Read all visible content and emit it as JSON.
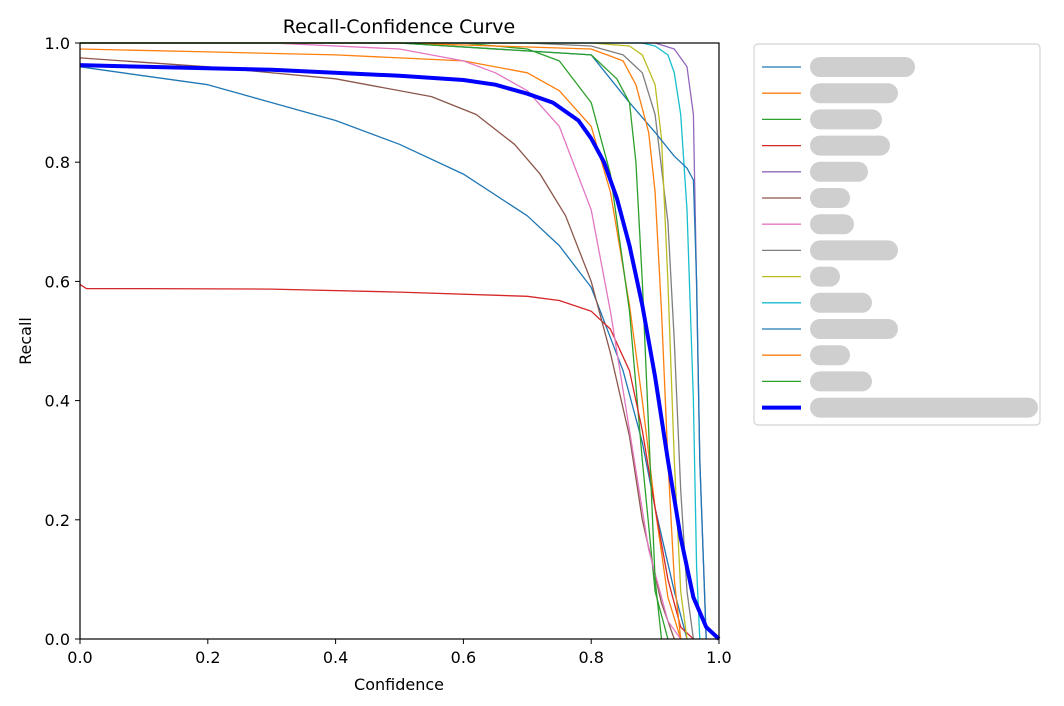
{
  "chart_data": {
    "type": "line",
    "title": "Recall-Confidence Curve",
    "xlabel": "Confidence",
    "ylabel": "Recall",
    "xlim": [
      0.0,
      1.0
    ],
    "ylim": [
      0.0,
      1.0
    ],
    "xticks": [
      "0.0",
      "0.2",
      "0.4",
      "0.6",
      "0.8",
      "1.0"
    ],
    "yticks": [
      "0.0",
      "0.2",
      "0.4",
      "0.6",
      "0.8",
      "1.0"
    ],
    "grid": false,
    "legend_position": "outside-right",
    "series": [
      {
        "color": "#1f77b4",
        "x": [
          0.0,
          0.1,
          0.2,
          0.3,
          0.4,
          0.5,
          0.6,
          0.7,
          0.75,
          0.8,
          0.85,
          0.88,
          0.9,
          0.93,
          0.95
        ],
        "y": [
          0.96,
          0.945,
          0.93,
          0.9,
          0.87,
          0.83,
          0.78,
          0.71,
          0.66,
          0.59,
          0.45,
          0.33,
          0.22,
          0.08,
          0.0
        ]
      },
      {
        "color": "#ff7f0e",
        "x": [
          0.0,
          0.2,
          0.4,
          0.6,
          0.7,
          0.75,
          0.8,
          0.83,
          0.86,
          0.88,
          0.9,
          0.92,
          0.94
        ],
        "y": [
          0.99,
          0.985,
          0.98,
          0.97,
          0.95,
          0.92,
          0.86,
          0.75,
          0.56,
          0.4,
          0.22,
          0.07,
          0.0
        ]
      },
      {
        "color": "#2ca02c",
        "x": [
          0.0,
          0.3,
          0.6,
          0.7,
          0.75,
          0.8,
          0.83,
          0.86,
          0.88,
          0.9,
          0.92
        ],
        "y": [
          1.0,
          1.0,
          1.0,
          0.99,
          0.97,
          0.9,
          0.78,
          0.55,
          0.3,
          0.08,
          0.0
        ]
      },
      {
        "color": "#d62728",
        "x": [
          0.0,
          0.01,
          0.1,
          0.3,
          0.5,
          0.7,
          0.75,
          0.8,
          0.83,
          0.86,
          0.88,
          0.9,
          0.92,
          0.94,
          0.96
        ],
        "y": [
          0.595,
          0.588,
          0.588,
          0.587,
          0.582,
          0.575,
          0.568,
          0.55,
          0.52,
          0.45,
          0.35,
          0.22,
          0.1,
          0.02,
          0.0
        ]
      },
      {
        "color": "#9467bd",
        "x": [
          0.0,
          0.5,
          0.86,
          0.9,
          0.93,
          0.95,
          0.96,
          0.97,
          0.98
        ],
        "y": [
          1.0,
          1.0,
          1.0,
          1.0,
          0.99,
          0.96,
          0.88,
          0.3,
          0.0
        ]
      },
      {
        "color": "#8c564b",
        "x": [
          0.0,
          0.2,
          0.4,
          0.55,
          0.62,
          0.68,
          0.72,
          0.76,
          0.8,
          0.83,
          0.86,
          0.88,
          0.91,
          0.93
        ],
        "y": [
          0.975,
          0.96,
          0.94,
          0.91,
          0.88,
          0.83,
          0.78,
          0.71,
          0.6,
          0.48,
          0.34,
          0.2,
          0.06,
          0.0
        ]
      },
      {
        "color": "#e377c2",
        "x": [
          0.0,
          0.3,
          0.5,
          0.6,
          0.65,
          0.7,
          0.75,
          0.8,
          0.83,
          0.86,
          0.89,
          0.92,
          0.94
        ],
        "y": [
          1.0,
          1.0,
          0.99,
          0.97,
          0.95,
          0.92,
          0.86,
          0.72,
          0.55,
          0.35,
          0.15,
          0.03,
          0.0
        ]
      },
      {
        "color": "#7f7f7f",
        "x": [
          0.0,
          0.5,
          0.7,
          0.8,
          0.85,
          0.88,
          0.9,
          0.92,
          0.93,
          0.94,
          0.95,
          0.96
        ],
        "y": [
          1.0,
          1.0,
          1.0,
          0.995,
          0.98,
          0.95,
          0.88,
          0.7,
          0.5,
          0.25,
          0.08,
          0.0
        ]
      },
      {
        "color": "#bcbd22",
        "x": [
          0.0,
          0.5,
          0.8,
          0.86,
          0.88,
          0.9,
          0.91,
          0.92,
          0.93,
          0.94,
          0.95
        ],
        "y": [
          1.0,
          1.0,
          1.0,
          0.995,
          0.98,
          0.93,
          0.84,
          0.6,
          0.3,
          0.08,
          0.0
        ]
      },
      {
        "color": "#17becf",
        "x": [
          0.0,
          0.5,
          0.88,
          0.9,
          0.92,
          0.93,
          0.94,
          0.95,
          0.96,
          0.965,
          0.97
        ],
        "y": [
          1.0,
          1.0,
          1.0,
          0.995,
          0.98,
          0.95,
          0.88,
          0.72,
          0.4,
          0.12,
          0.0
        ]
      },
      {
        "color": "#1f77b4",
        "x": [
          0.0,
          0.5,
          0.8,
          0.83,
          0.86,
          0.9,
          0.93,
          0.95,
          0.96,
          0.965,
          0.97,
          0.98
        ],
        "y": [
          1.0,
          1.0,
          0.98,
          0.94,
          0.9,
          0.85,
          0.81,
          0.79,
          0.77,
          0.6,
          0.3,
          0.0
        ]
      },
      {
        "color": "#ff7f0e",
        "x": [
          0.0,
          0.5,
          0.8,
          0.85,
          0.87,
          0.89,
          0.9,
          0.91,
          0.92,
          0.93,
          0.94
        ],
        "y": [
          1.0,
          1.0,
          0.99,
          0.97,
          0.93,
          0.85,
          0.75,
          0.55,
          0.3,
          0.1,
          0.0
        ]
      },
      {
        "color": "#2ca02c",
        "x": [
          0.0,
          0.5,
          0.8,
          0.84,
          0.86,
          0.87,
          0.88,
          0.89,
          0.9,
          0.91
        ],
        "y": [
          1.0,
          1.0,
          0.98,
          0.94,
          0.9,
          0.8,
          0.6,
          0.35,
          0.1,
          0.0
        ]
      },
      {
        "color": "#0000ff",
        "width": 4,
        "x": [
          0.0,
          0.1,
          0.3,
          0.5,
          0.6,
          0.65,
          0.7,
          0.74,
          0.78,
          0.8,
          0.82,
          0.84,
          0.86,
          0.88,
          0.9,
          0.92,
          0.94,
          0.96,
          0.98,
          1.0
        ],
        "y": [
          0.963,
          0.96,
          0.955,
          0.945,
          0.938,
          0.93,
          0.915,
          0.9,
          0.87,
          0.84,
          0.8,
          0.74,
          0.66,
          0.56,
          0.44,
          0.3,
          0.17,
          0.07,
          0.02,
          0.0
        ]
      }
    ]
  }
}
